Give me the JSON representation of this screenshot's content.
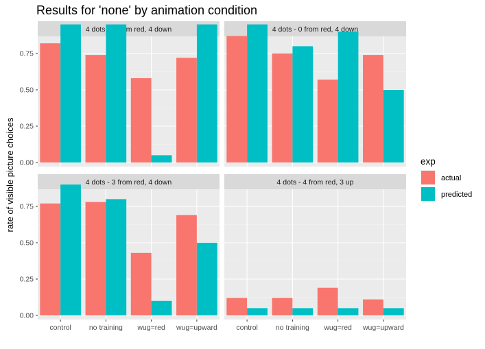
{
  "chart_data": {
    "type": "bar",
    "title": "Results for 'none' by animation condition",
    "xlabel": "",
    "ylabel": "rate of visible picture choices",
    "ylim": [
      0,
      1
    ],
    "y_ticks": [
      "0.00",
      "0.25",
      "0.50",
      "0.75"
    ],
    "y_tick_values": [
      0,
      0.25,
      0.5,
      0.75
    ],
    "categories": [
      "control",
      "no training",
      "wug=red",
      "wug=upward"
    ],
    "grid": true,
    "legend": {
      "title": "exp",
      "position": "right",
      "entries": [
        "actual",
        "predicted"
      ]
    },
    "colors": {
      "actual": "#F8766D",
      "predicted": "#00BFC4",
      "panel": "#EBEBEB",
      "strip": "#D9D9D9"
    },
    "panels": [
      {
        "strip": "4 dots  - 4 from red, 4 down",
        "series": [
          {
            "name": "actual",
            "values": [
              0.82,
              0.74,
              0.58,
              0.72
            ]
          },
          {
            "name": "predicted",
            "values": [
              0.95,
              0.95,
              0.05,
              0.95
            ]
          }
        ]
      },
      {
        "strip": "4 dots  - 0 from red, 4 down",
        "series": [
          {
            "name": "actual",
            "values": [
              0.87,
              0.75,
              0.57,
              0.74
            ]
          },
          {
            "name": "predicted",
            "values": [
              0.95,
              0.8,
              0.9,
              0.5
            ]
          }
        ]
      },
      {
        "strip": "4 dots  - 3 from red, 4 down",
        "series": [
          {
            "name": "actual",
            "values": [
              0.77,
              0.78,
              0.43,
              0.69
            ]
          },
          {
            "name": "predicted",
            "values": [
              0.9,
              0.8,
              0.1,
              0.5
            ]
          }
        ]
      },
      {
        "strip": "4 dots  - 4 from red,  3 up",
        "series": [
          {
            "name": "actual",
            "values": [
              0.12,
              0.12,
              0.19,
              0.11
            ]
          },
          {
            "name": "predicted",
            "values": [
              0.05,
              0.05,
              0.05,
              0.05
            ]
          }
        ]
      }
    ]
  }
}
